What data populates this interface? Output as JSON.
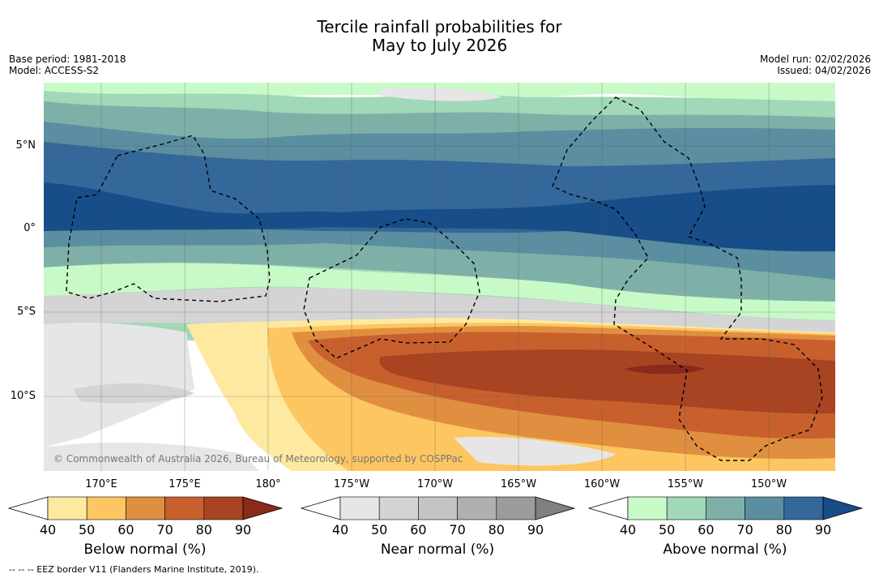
{
  "header": {
    "title_line1": "Tercile rainfall probabilities for",
    "title_line2": "May to July 2026",
    "base_period": "Base period: 1981-2018",
    "model": "Model: ACCESS-S2",
    "model_run": "Model run: 02/02/2026",
    "issued": "Issued: 04/02/2026"
  },
  "map": {
    "lat_labels": [
      "5°N",
      "0°",
      "5°S",
      "10°S"
    ],
    "lon_labels": [
      "170°E",
      "175°E",
      "180°",
      "175°W",
      "170°W",
      "165°W",
      "160°W",
      "155°W",
      "150°W"
    ],
    "copyright": "© Commonwealth of Australia 2026, Bureau of Meteorology, supported by COSPPac"
  },
  "colorbars": {
    "below": {
      "label": "Below normal (%)",
      "ticks": [
        "40",
        "50",
        "60",
        "70",
        "80",
        "90"
      ],
      "colors": [
        "#ffffff",
        "#fee9a0",
        "#fdc660",
        "#e08f40",
        "#c8602e",
        "#a84422",
        "#8a2a1a"
      ]
    },
    "near": {
      "label": "Near normal (%)",
      "ticks": [
        "40",
        "50",
        "60",
        "70",
        "80",
        "90"
      ],
      "colors": [
        "#ffffff",
        "#e6e6e6",
        "#d4d4d4",
        "#c4c4c4",
        "#b0b0b0",
        "#9c9c9c",
        "#808080"
      ]
    },
    "above": {
      "label": "Above normal (%)",
      "ticks": [
        "40",
        "50",
        "60",
        "70",
        "80",
        "90"
      ],
      "colors": [
        "#ffffff",
        "#c8fac8",
        "#a0d8b8",
        "#7fb0a8",
        "#5a8ea0",
        "#34679a",
        "#174d88"
      ]
    }
  },
  "footer": {
    "legend_text": "--  --  -- EEZ border V11 (Flanders Marine Institute, 2019)."
  }
}
